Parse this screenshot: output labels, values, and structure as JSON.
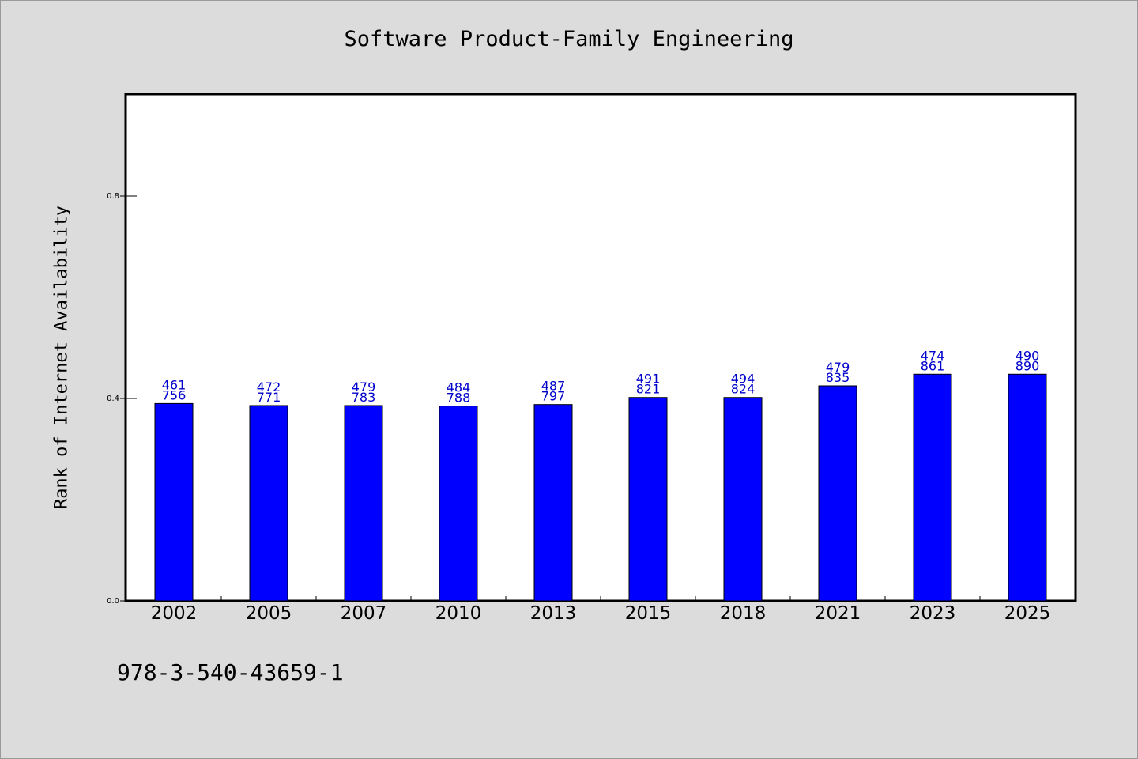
{
  "chart_data": {
    "type": "bar",
    "title": "Software Product-Family Engineering",
    "xlabel": "",
    "ylabel": "Rank of Internet Availability",
    "categories": [
      "2002",
      "2005",
      "2007",
      "2010",
      "2013",
      "2015",
      "2018",
      "2021",
      "2023",
      "2025"
    ],
    "values": [
      0.39,
      0.386,
      0.386,
      0.385,
      0.388,
      0.402,
      0.402,
      0.425,
      0.448,
      0.448
    ],
    "labels_top": [
      "461",
      "472",
      "479",
      "484",
      "487",
      "491",
      "494",
      "479",
      "474",
      "490"
    ],
    "labels_bottom": [
      "756",
      "771",
      "783",
      "788",
      "797",
      "821",
      "824",
      "835",
      "861",
      "890"
    ],
    "ylim": [
      0,
      1.0
    ],
    "yticks": [
      "0.0",
      "0.4",
      "0.8"
    ],
    "ytick_values": [
      0,
      0.4,
      0.8
    ],
    "grid": false,
    "bar_color": "#0000ff",
    "label_color": "#0000cc"
  },
  "footer": {
    "id_text": "978-3-540-43659-1"
  }
}
